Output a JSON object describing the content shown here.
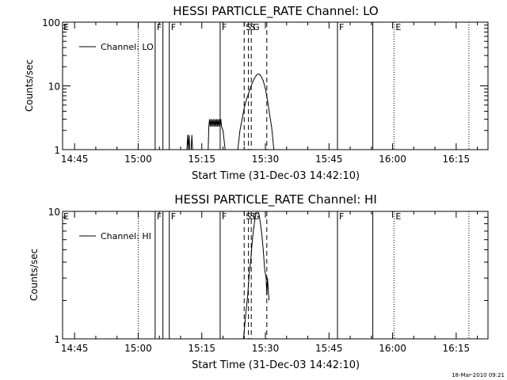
{
  "timestamp": "18-Mar-2010 09:21",
  "chart_data": [
    {
      "type": "line",
      "title": "HESSI PARTICLE_RATE Channel: LO",
      "xlabel": "Start Time (31-Dec-03 14:42:10)",
      "ylabel": "Counts/sec",
      "yscale": "log",
      "xlim": [
        "14:42:10",
        "16:22:30"
      ],
      "ylim": [
        1,
        100
      ],
      "x_ticks": [
        "14:45",
        "15:00",
        "15:15",
        "15:30",
        "15:45",
        "16:00",
        "16:15"
      ],
      "y_ticks": [
        "1",
        "10",
        "100"
      ],
      "legend": {
        "label": "Channel: LO",
        "position": "top-left"
      },
      "series": [
        {
          "name": "Channel: LO",
          "segments": [
            [
              [
                "15:11:30",
                1.0
              ],
              [
                "15:11:40",
                1.7
              ],
              [
                "15:11:50",
                1.0
              ],
              [
                "15:12:00",
                1.7
              ],
              [
                "15:12:10",
                1.0
              ],
              [
                "15:12:30",
                1.0
              ],
              [
                "15:12:40",
                1.7
              ],
              [
                "15:12:50",
                1.0
              ]
            ],
            [
              [
                "15:16:30",
                1.0
              ],
              [
                "15:16:40",
                2.3
              ],
              [
                "15:16:50",
                3.0
              ],
              [
                "15:17:00",
                2.3
              ],
              [
                "15:17:10",
                3.0
              ],
              [
                "15:17:20",
                2.3
              ],
              [
                "15:17:30",
                3.0
              ],
              [
                "15:17:40",
                2.3
              ],
              [
                "15:17:50",
                3.0
              ],
              [
                "15:18:00",
                2.3
              ],
              [
                "15:18:10",
                3.0
              ],
              [
                "15:18:20",
                2.3
              ],
              [
                "15:18:30",
                3.0
              ],
              [
                "15:18:40",
                2.3
              ],
              [
                "15:18:50",
                3.0
              ],
              [
                "15:19:00",
                2.3
              ],
              [
                "15:19:10",
                3.0
              ],
              [
                "15:19:20",
                2.3
              ],
              [
                "15:19:30",
                3.0
              ],
              [
                "15:19:40",
                2.3
              ],
              [
                "15:20:00",
                2.0
              ],
              [
                "15:20:30",
                1.0
              ]
            ],
            [
              [
                "15:23:30",
                1.0
              ],
              [
                "15:24:00",
                2.0
              ],
              [
                "15:24:30",
                3.0
              ],
              [
                "15:25:00",
                4.5
              ],
              [
                "15:25:30",
                6.0
              ],
              [
                "15:26:00",
                7.5
              ],
              [
                "15:26:30",
                9.5
              ],
              [
                "15:27:00",
                11.5
              ],
              [
                "15:27:30",
                13.5
              ],
              [
                "15:28:00",
                15.0
              ],
              [
                "15:28:30",
                15.5
              ],
              [
                "15:29:00",
                14.0
              ],
              [
                "15:29:30",
                12.0
              ],
              [
                "15:30:00",
                9.0
              ],
              [
                "15:30:30",
                6.0
              ],
              [
                "15:31:00",
                3.5
              ],
              [
                "15:31:30",
                2.2
              ],
              [
                "15:32:00",
                1.0
              ]
            ]
          ]
        }
      ]
    },
    {
      "type": "line",
      "title": "HESSI PARTICLE_RATE Channel: HI",
      "xlabel": "Start Time (31-Dec-03 14:42:10)",
      "ylabel": "Counts/sec",
      "yscale": "log",
      "xlim": [
        "14:42:10",
        "16:22:30"
      ],
      "ylim": [
        1,
        10
      ],
      "x_ticks": [
        "14:45",
        "15:00",
        "15:15",
        "15:30",
        "15:45",
        "16:00",
        "16:15"
      ],
      "y_ticks": [
        "1",
        "10"
      ],
      "legend": {
        "label": "Channel: HI",
        "position": "top-left"
      },
      "series": [
        {
          "name": "Channel: HI",
          "segments": [
            [
              [
                "15:24:50",
                1.0
              ],
              [
                "15:25:20",
                1.5
              ],
              [
                "15:25:50",
                2.2
              ],
              [
                "15:26:10",
                3.2
              ],
              [
                "15:26:30",
                4.0
              ],
              [
                "15:26:50",
                5.5
              ],
              [
                "15:27:10",
                7.0
              ],
              [
                "15:27:30",
                8.5
              ],
              [
                "15:27:50",
                10.0
              ],
              [
                "15:28:10",
                10.0
              ],
              [
                "15:28:30",
                9.5
              ],
              [
                "15:28:50",
                8.0
              ],
              [
                "15:29:10",
                6.5
              ],
              [
                "15:29:30",
                5.0
              ],
              [
                "15:29:50",
                3.5
              ],
              [
                "15:30:10",
                3.0
              ],
              [
                "15:30:20",
                2.2
              ],
              [
                "15:30:30",
                3.0
              ],
              [
                "15:30:50",
                2.0
              ]
            ]
          ]
        }
      ]
    }
  ],
  "markers": [
    {
      "type": "dotted",
      "time": "15:00:00",
      "label": ""
    },
    {
      "type": "solid",
      "time": "15:04:00",
      "label": "F"
    },
    {
      "type": "solid",
      "time": "15:05:50",
      "label": ""
    },
    {
      "type": "solid",
      "time": "15:07:20",
      "label": "F"
    },
    {
      "type": "solid",
      "time": "15:19:20",
      "label": "F"
    },
    {
      "type": "dashed",
      "time": "15:25:00",
      "label": "S"
    },
    {
      "type": "dashed",
      "time": "15:26:00",
      "label": "S"
    },
    {
      "type": "dashed",
      "time": "15:26:40",
      "label": "G"
    },
    {
      "type": "dashed",
      "time": "15:30:20",
      "label": ""
    },
    {
      "type": "solid",
      "time": "15:47:00",
      "label": "F"
    },
    {
      "type": "solid",
      "time": "15:55:20",
      "label": ""
    },
    {
      "type": "dotted",
      "time": "16:00:20",
      "label": "E"
    },
    {
      "type": "dotted",
      "time": "16:18:00",
      "label": ""
    }
  ],
  "edge_label": "E"
}
